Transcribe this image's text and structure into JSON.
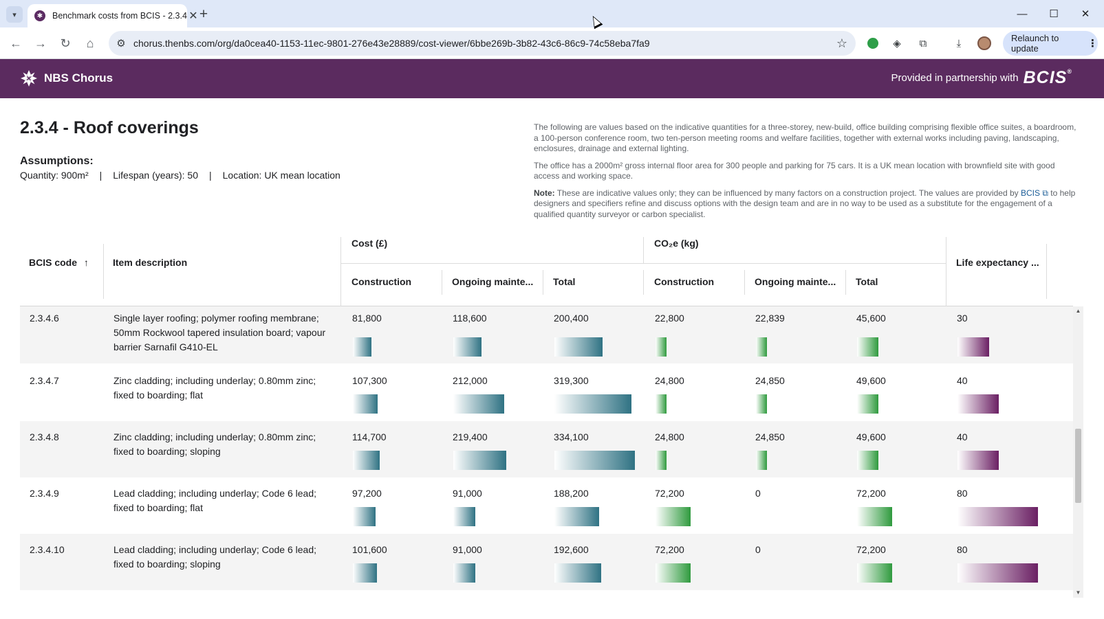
{
  "browser": {
    "tab_title": "Benchmark costs from BCIS - 2.3.4",
    "url": "chorus.thenbs.com/org/da0cea40-1153-11ec-9801-276e43e28889/cost-viewer/6bbe269b-3b82-43c6-86c9-74c58eba7fa9",
    "relaunch_label": "Relaunch to update"
  },
  "header": {
    "brand": "NBS Chorus",
    "partner_text": "Provided in partnership with",
    "partner_logo": "BCIS",
    "partner_mark": "®"
  },
  "page": {
    "title": "2.3.4 - Roof coverings",
    "assumptions_label": "Assumptions:",
    "quantity": "Quantity: 900m²",
    "lifespan": "Lifespan (years): 50",
    "location": "Location: UK mean location",
    "separator": "|",
    "desc_1": "The following are values based on the indicative quantities for a three-storey, new-build, office building comprising flexible office suites, a boardroom, a 100-person conference room, two ten-person meeting rooms and welfare facilities, together with external works including paving, landscaping, enclosures, drainage and external lighting.",
    "desc_2": "The office has a 2000m² gross internal floor area for 300 people and parking for 75 cars. It is a UK mean location with brownfield site with good access and working space.",
    "note_label": "Note:",
    "note_text": "These are indicative values only; they can be influenced by many factors on a construction project. The values are provided by",
    "note_link": "BCIS",
    "note_text_2": "to help designers and specifiers refine and discuss options with the design team and are in no way to be used as a substitute for the engagement of a qualified quantity surveyor or carbon specialist."
  },
  "table": {
    "headers": {
      "code": "BCIS code",
      "description": "Item description",
      "cost_group": "Cost (£)",
      "co2_group": "CO₂e (kg)",
      "construction": "Construction",
      "ongoing": "Ongoing mainte...",
      "total": "Total",
      "life": "Life expectancy ..."
    },
    "rows": [
      {
        "code": "2.3.4.6",
        "description": "Single layer roofing; polymer roofing membrane; 50mm Rockwool tapered insulation board; vapour barrier Sarnafil G410-EL",
        "cost_construction": "81,800",
        "cost_ongoing": "118,600",
        "cost_total": "200,400",
        "co2_construction": "22,800",
        "co2_ongoing": "22,839",
        "co2_total": "45,600",
        "life": "30"
      },
      {
        "code": "2.3.4.7",
        "description": "Zinc cladding; including underlay; 0.80mm zinc; fixed to boarding; flat",
        "cost_construction": "107,300",
        "cost_ongoing": "212,000",
        "cost_total": "319,300",
        "co2_construction": "24,800",
        "co2_ongoing": "24,850",
        "co2_total": "49,600",
        "life": "40"
      },
      {
        "code": "2.3.4.8",
        "description": "Zinc cladding; including underlay; 0.80mm zinc; fixed to boarding; sloping",
        "cost_construction": "114,700",
        "cost_ongoing": "219,400",
        "cost_total": "334,100",
        "co2_construction": "24,800",
        "co2_ongoing": "24,850",
        "co2_total": "49,600",
        "life": "40"
      },
      {
        "code": "2.3.4.9",
        "description": "Lead cladding; including underlay; Code 6 lead; fixed to boarding; flat",
        "cost_construction": "97,200",
        "cost_ongoing": "91,000",
        "cost_total": "188,200",
        "co2_construction": "72,200",
        "co2_ongoing": "0",
        "co2_total": "72,200",
        "life": "80"
      },
      {
        "code": "2.3.4.10",
        "description": "Lead cladding; including underlay; Code 6 lead; fixed to boarding; sloping",
        "cost_construction": "101,600",
        "cost_ongoing": "91,000",
        "cost_total": "192,600",
        "co2_construction": "72,200",
        "co2_ongoing": "0",
        "co2_total": "72,200",
        "life": "80"
      }
    ]
  },
  "colors": {
    "brand": "#5b2b5f",
    "cost_bar": "#2f7283",
    "co2_bar": "#2f9a3e",
    "life_bar": "#6a1f63"
  }
}
